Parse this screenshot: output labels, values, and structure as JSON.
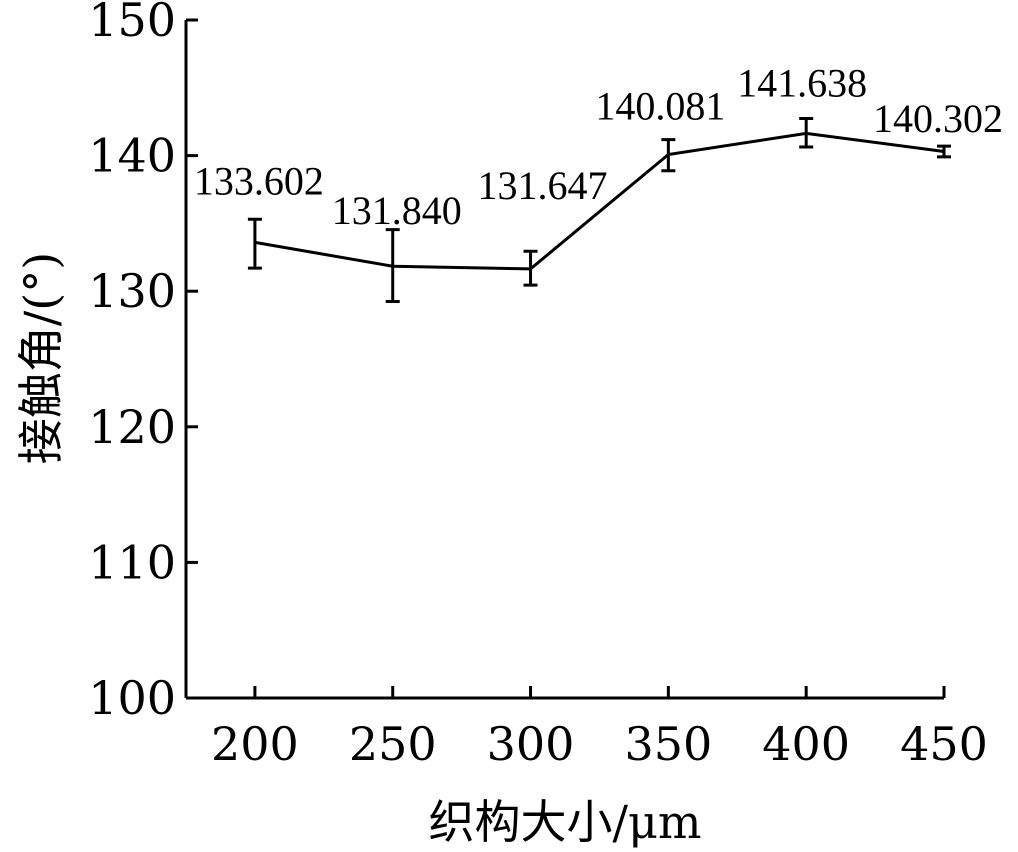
{
  "chart_data": {
    "type": "line",
    "xlabel": "织构大小/μm",
    "ylabel": "接触角/(°)",
    "x": [
      200,
      250,
      300,
      350,
      400,
      450
    ],
    "xticks": [
      200,
      250,
      300,
      350,
      400,
      450
    ],
    "xlim": [
      175,
      450
    ],
    "ylim": [
      100,
      150
    ],
    "yticks": [
      100,
      110,
      120,
      130,
      140,
      150
    ],
    "grid": false,
    "series": [
      {
        "values": [
          133.602,
          131.84,
          131.647,
          140.081,
          141.638,
          140.302
        ],
        "error_low": [
          1.9,
          2.6,
          1.2,
          1.2,
          1.0,
          0.4
        ],
        "error_high": [
          1.7,
          2.7,
          1.3,
          1.1,
          1.1,
          0.4
        ],
        "data_labels": [
          "133.602",
          "131.840",
          "131.647",
          "140.081",
          "141.638",
          "140.302"
        ]
      }
    ]
  }
}
